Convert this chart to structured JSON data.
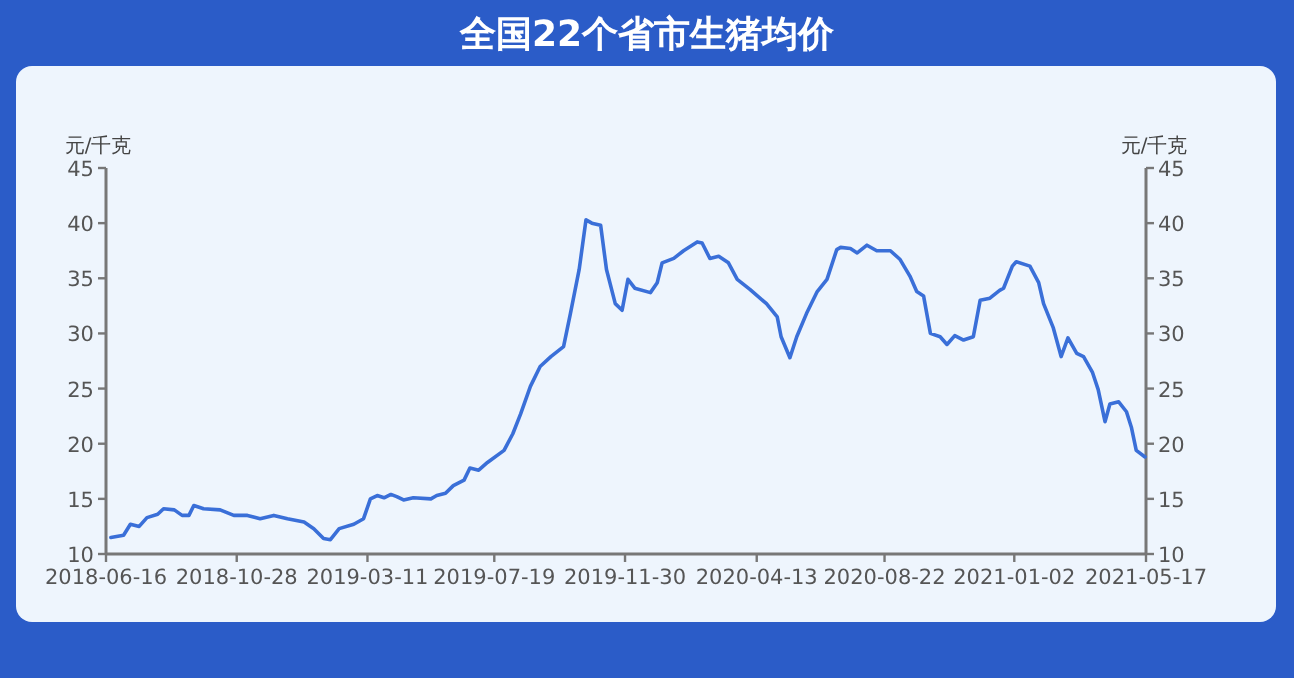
{
  "chart_data": {
    "type": "line",
    "title": "全国22个省市生猪均价",
    "ylabel": "元/千克",
    "y2label": "元/千克",
    "xlim": [
      "2018-06-16",
      "2021-05-17"
    ],
    "xticks": [
      "2018-06-16",
      "2018-10-28",
      "2019-03-11",
      "2019-07-19",
      "2019-11-30",
      "2020-04-13",
      "2020-08-22",
      "2021-01-02",
      "2021-05-17"
    ],
    "ylim": [
      10,
      45
    ],
    "yticks": [
      10,
      15,
      20,
      25,
      30,
      35,
      40,
      45
    ],
    "y2lim": [
      10,
      45
    ],
    "y2ticks": [
      10,
      15,
      20,
      25,
      30,
      35,
      40,
      45
    ],
    "grid": false,
    "marker": "none",
    "line_style": "solid",
    "series": [
      {
        "color": "#3a6fd8",
        "x": [
          "2018-06-21",
          "2018-07-04",
          "2018-07-11",
          "2018-07-20",
          "2018-07-28",
          "2018-08-08",
          "2018-08-14",
          "2018-08-25",
          "2018-09-02",
          "2018-09-09",
          "2018-09-14",
          "2018-09-24",
          "2018-10-11",
          "2018-10-25",
          "2018-11-08",
          "2018-11-21",
          "2018-12-05",
          "2018-12-19",
          "2019-01-05",
          "2019-01-15",
          "2019-01-25",
          "2019-02-01",
          "2019-02-10",
          "2019-02-25",
          "2019-03-07",
          "2019-03-14",
          "2019-03-21",
          "2019-03-28",
          "2019-04-04",
          "2019-04-10",
          "2019-04-17",
          "2019-04-27",
          "2019-05-15",
          "2019-05-21",
          "2019-05-30",
          "2019-06-07",
          "2019-06-18",
          "2019-06-24",
          "2019-07-03",
          "2019-07-12",
          "2019-07-29",
          "2019-08-07",
          "2019-08-15",
          "2019-08-25",
          "2019-09-04",
          "2019-09-15",
          "2019-09-28",
          "2019-10-05",
          "2019-10-14",
          "2019-10-21",
          "2019-10-27",
          "2019-11-05",
          "2019-11-11",
          "2019-11-20",
          "2019-11-27",
          "2019-12-03",
          "2019-12-10",
          "2019-12-26",
          "2020-01-02",
          "2020-01-07",
          "2020-01-19",
          "2020-01-29",
          "2020-02-12",
          "2020-02-17",
          "2020-02-25",
          "2020-03-05",
          "2020-03-15",
          "2020-03-24",
          "2020-04-06",
          "2020-04-23",
          "2020-05-04",
          "2020-05-08",
          "2020-05-17",
          "2020-05-24",
          "2020-06-03",
          "2020-06-14",
          "2020-06-24",
          "2020-07-04",
          "2020-07-08",
          "2020-07-18",
          "2020-07-25",
          "2020-08-04",
          "2020-08-14",
          "2020-08-28",
          "2020-09-07",
          "2020-09-17",
          "2020-09-24",
          "2020-10-01",
          "2020-10-08",
          "2020-10-18",
          "2020-10-25",
          "2020-11-02",
          "2020-11-11",
          "2020-11-21",
          "2020-11-28",
          "2020-12-08",
          "2020-12-18",
          "2020-12-22",
          "2020-12-31",
          "2021-01-04",
          "2021-01-18",
          "2021-01-27",
          "2021-02-01",
          "2021-02-11",
          "2021-02-19",
          "2021-02-26",
          "2021-03-07",
          "2021-03-14",
          "2021-03-23",
          "2021-03-29",
          "2021-04-05",
          "2021-04-10",
          "2021-04-19",
          "2021-04-27",
          "2021-05-02",
          "2021-05-07",
          "2021-05-16"
        ],
        "values": [
          11.5,
          11.7,
          12.7,
          12.5,
          13.3,
          13.6,
          14.1,
          14.0,
          13.5,
          13.5,
          14.4,
          14.1,
          14.0,
          13.5,
          13.5,
          13.2,
          13.5,
          13.2,
          12.9,
          12.3,
          11.4,
          11.3,
          12.3,
          12.7,
          13.2,
          15.0,
          15.3,
          15.1,
          15.4,
          15.2,
          14.9,
          15.1,
          15.0,
          15.3,
          15.5,
          16.2,
          16.7,
          17.8,
          17.6,
          18.3,
          19.4,
          20.9,
          22.7,
          25.2,
          27.0,
          27.9,
          28.8,
          31.8,
          35.8,
          40.3,
          40.0,
          39.8,
          35.8,
          32.7,
          32.1,
          34.9,
          34.1,
          33.7,
          34.6,
          36.4,
          36.8,
          37.5,
          38.3,
          38.2,
          36.8,
          37.0,
          36.4,
          34.9,
          34.0,
          32.7,
          31.5,
          29.7,
          27.8,
          29.7,
          31.8,
          33.8,
          34.9,
          37.6,
          37.8,
          37.7,
          37.3,
          38.0,
          37.5,
          37.5,
          36.7,
          35.2,
          33.8,
          33.4,
          30.0,
          29.7,
          29.0,
          29.8,
          29.4,
          29.7,
          33.0,
          33.2,
          33.9,
          34.1,
          36.1,
          36.5,
          36.1,
          34.6,
          32.7,
          30.5,
          27.9,
          29.6,
          28.2,
          27.9,
          26.5,
          24.9,
          22.0,
          23.6,
          23.8,
          22.9,
          21.5,
          19.4,
          18.8
        ]
      }
    ]
  }
}
